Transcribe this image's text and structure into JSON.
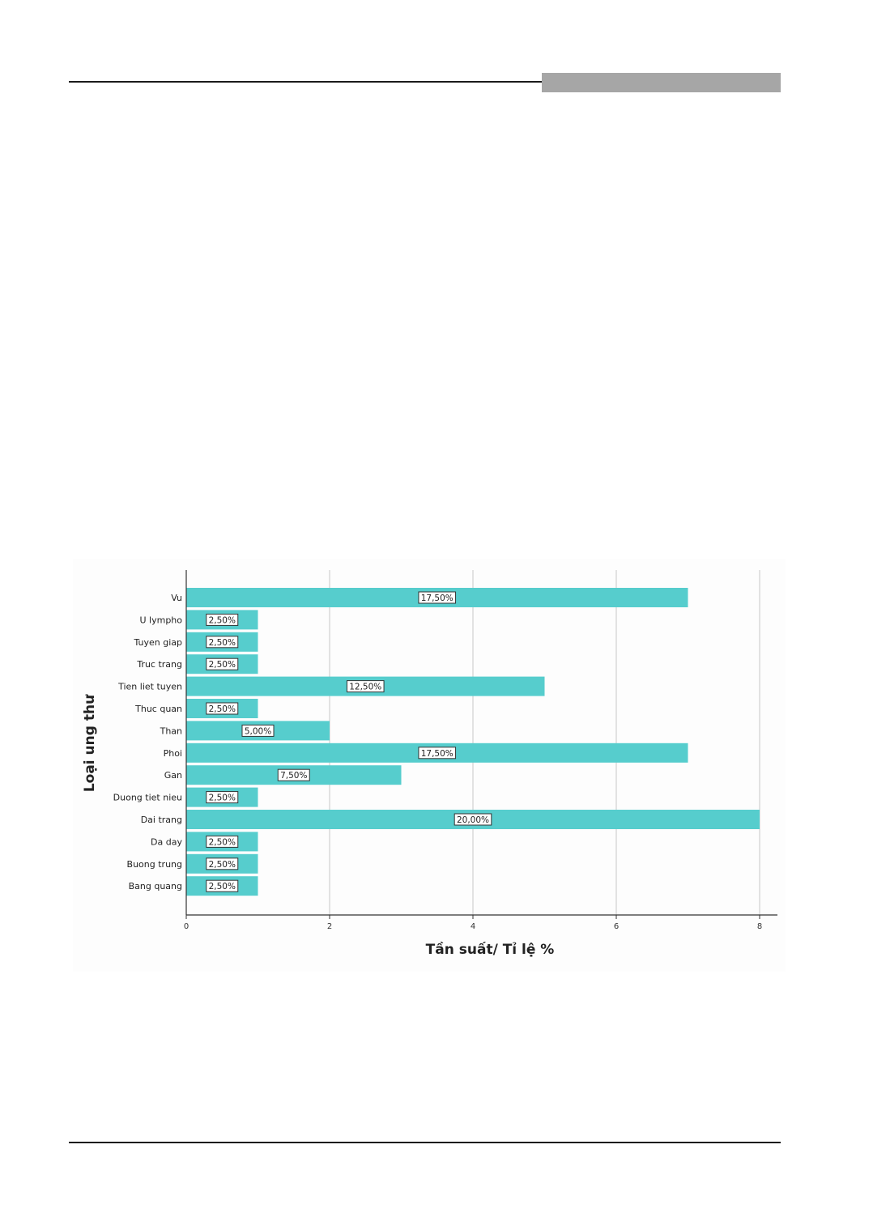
{
  "chart_data": {
    "type": "bar",
    "orientation": "horizontal",
    "xlabel": "Tần suất/ Tỉ lệ %",
    "ylabel": "Loại ung thư",
    "xlim": [
      0,
      8
    ],
    "xticks": [
      "0",
      "2",
      "4",
      "6",
      "8"
    ],
    "grid": true,
    "bar_color": "#56cdcd",
    "categories": [
      "Vu",
      "U lympho",
      "Tuyen giap",
      "Truc trang",
      "Tien liet tuyen",
      "Thuc quan",
      "Than",
      "Phoi",
      "Gan",
      "Duong tiet nieu",
      "Dai trang",
      "Da day",
      "Buong trung",
      "Bang quang"
    ],
    "values": [
      7,
      1,
      1,
      1,
      5,
      1,
      2,
      7,
      3,
      1,
      8,
      1,
      1,
      1
    ],
    "labels": [
      "17,50%",
      "2,50%",
      "2,50%",
      "2,50%",
      "12,50%",
      "2,50%",
      "5,00%",
      "17,50%",
      "7,50%",
      "2,50%",
      "20,00%",
      "2,50%",
      "2,50%",
      "2,50%"
    ]
  }
}
